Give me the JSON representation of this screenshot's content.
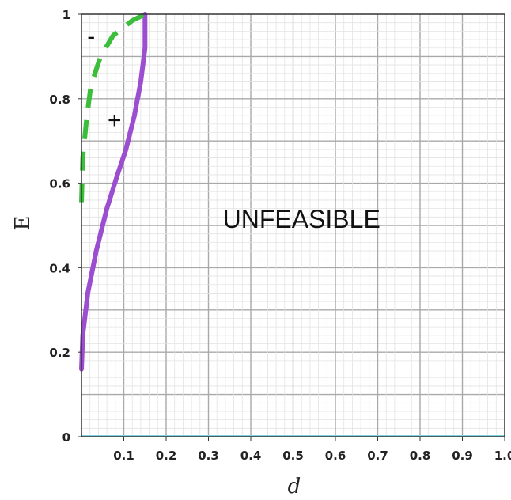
{
  "chart_data": {
    "type": "line",
    "title": "",
    "xlabel": "d",
    "ylabel": "E",
    "xlim": [
      0,
      1.0
    ],
    "ylim": [
      0,
      1.0
    ],
    "x_ticks": [
      "0.1",
      "0.2",
      "0.3",
      "0.4",
      "0.5",
      "0.6",
      "0.7",
      "0.8",
      "0.9",
      "1.0"
    ],
    "y_ticks": [
      "0",
      "0.2",
      "0.4",
      "0.6",
      "0.8",
      "1"
    ],
    "grid": true,
    "series": [
      {
        "style": "solid",
        "color": "#9b4fd0",
        "points": [
          [
            0.0,
            0.16
          ],
          [
            0.003,
            0.24
          ],
          [
            0.015,
            0.34
          ],
          [
            0.035,
            0.44
          ],
          [
            0.06,
            0.54
          ],
          [
            0.085,
            0.62
          ],
          [
            0.105,
            0.68
          ],
          [
            0.125,
            0.76
          ],
          [
            0.14,
            0.84
          ],
          [
            0.15,
            0.92
          ],
          [
            0.15,
            1.0
          ]
        ]
      },
      {
        "style": "dashed",
        "color": "#3cbd3c",
        "points": [
          [
            0.0,
            0.555
          ],
          [
            0.003,
            0.66
          ],
          [
            0.012,
            0.75
          ],
          [
            0.022,
            0.83
          ],
          [
            0.045,
            0.9
          ],
          [
            0.075,
            0.95
          ],
          [
            0.12,
            0.985
          ],
          [
            0.15,
            1.0
          ]
        ]
      }
    ],
    "baseline": {
      "y": 0.0,
      "color": "#7fd3e0"
    },
    "annotations": [
      {
        "text": "UNFEASIBLE",
        "x": 0.52,
        "y": 0.51,
        "kind": "region"
      },
      {
        "text": "-",
        "x": 0.023,
        "y": 0.945,
        "kind": "sign"
      },
      {
        "text": "+",
        "x": 0.078,
        "y": 0.745,
        "kind": "sign"
      }
    ]
  }
}
